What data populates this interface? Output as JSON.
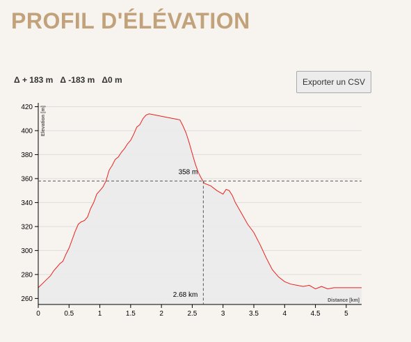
{
  "header": {
    "title": "PROFIL D'ÉLÉVATION"
  },
  "stats": {
    "gain": "Δ + 183 m",
    "loss": "Δ -183 m",
    "net": "Δ0 m"
  },
  "toolbar": {
    "export_label": "Exporter un CSV"
  },
  "colors": {
    "title": "#c2a27b",
    "line": "#e8211d",
    "area": "#ebebeb"
  },
  "marker": {
    "distance_label": "2.68 km",
    "elevation_label": "358 m",
    "x": 2.68,
    "y": 358
  },
  "chart_data": {
    "type": "area",
    "xlabel": "Distance [km]",
    "ylabel": "Elevation [m]",
    "xlim": [
      0,
      5.25
    ],
    "ylim": [
      255,
      422
    ],
    "x_ticks": [
      "0",
      "0.5",
      "1",
      "1.5",
      "2",
      "2.5",
      "3",
      "3.5",
      "4",
      "4.5",
      "5"
    ],
    "y_ticks": [
      "260",
      "280",
      "300",
      "320",
      "340",
      "360",
      "380",
      "400",
      "420"
    ],
    "grid": true,
    "x": [
      0,
      0.1,
      0.2,
      0.25,
      0.3,
      0.35,
      0.4,
      0.45,
      0.5,
      0.55,
      0.6,
      0.65,
      0.7,
      0.75,
      0.8,
      0.85,
      0.9,
      0.95,
      1.0,
      1.05,
      1.1,
      1.15,
      1.2,
      1.25,
      1.3,
      1.35,
      1.4,
      1.45,
      1.5,
      1.55,
      1.6,
      1.65,
      1.7,
      1.75,
      1.8,
      1.9,
      2.0,
      2.1,
      2.2,
      2.3,
      2.35,
      2.4,
      2.45,
      2.5,
      2.55,
      2.6,
      2.65,
      2.7,
      2.8,
      2.9,
      3.0,
      3.05,
      3.1,
      3.15,
      3.2,
      3.3,
      3.4,
      3.5,
      3.6,
      3.7,
      3.8,
      3.9,
      4.0,
      4.1,
      4.2,
      4.3,
      4.4,
      4.5,
      4.6,
      4.7,
      4.8,
      4.9,
      5.0,
      5.1,
      5.25
    ],
    "values": [
      269,
      274,
      279,
      283,
      286,
      289,
      291,
      297,
      302,
      309,
      316,
      322,
      324,
      325,
      328,
      335,
      340,
      347,
      350,
      353,
      358,
      367,
      371,
      376,
      378,
      382,
      385,
      389,
      392,
      397,
      403,
      405,
      410,
      413,
      414,
      413,
      412,
      411,
      410,
      409,
      404,
      398,
      390,
      381,
      372,
      365,
      360,
      356,
      354,
      350,
      347,
      351,
      350,
      346,
      340,
      331,
      322,
      315,
      305,
      294,
      284,
      278,
      274,
      272,
      271,
      270,
      271,
      268,
      270,
      268,
      269,
      269,
      269,
      269,
      269
    ]
  }
}
